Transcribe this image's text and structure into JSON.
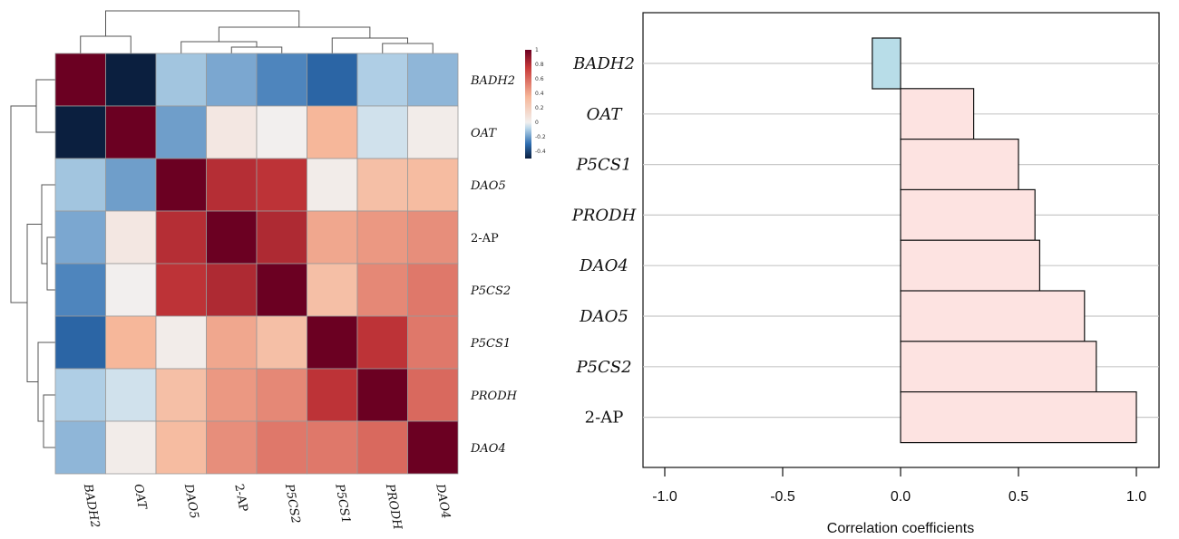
{
  "chart_data": [
    {
      "type": "heatmap",
      "title": "",
      "rows": [
        "BADH2",
        "OAT",
        "DAO5",
        "2-AP",
        "P5CS2",
        "P5CS1",
        "PRODH",
        "DAO4"
      ],
      "cols": [
        "BADH2",
        "OAT",
        "DAO5",
        "2-AP",
        "P5CS2",
        "P5CS1",
        "PRODH",
        "DAO4"
      ],
      "italic_labels": [
        "BADH2",
        "OAT",
        "DAO5",
        "P5CS2",
        "P5CS1",
        "PRODH",
        "DAO4"
      ],
      "values": [
        [
          1.0,
          -0.5,
          -0.12,
          -0.18,
          -0.25,
          -0.32,
          -0.1,
          -0.15
        ],
        [
          -0.5,
          1.0,
          -0.2,
          0.05,
          0.0,
          0.35,
          -0.05,
          0.02
        ],
        [
          -0.12,
          -0.2,
          1.0,
          0.8,
          0.78,
          0.02,
          0.3,
          0.32
        ],
        [
          -0.18,
          0.05,
          0.8,
          1.0,
          0.82,
          0.4,
          0.45,
          0.48
        ],
        [
          -0.25,
          0.0,
          0.78,
          0.82,
          1.0,
          0.3,
          0.5,
          0.55
        ],
        [
          -0.32,
          0.35,
          0.02,
          0.4,
          0.3,
          1.0,
          0.78,
          0.55
        ],
        [
          -0.1,
          -0.05,
          0.3,
          0.45,
          0.5,
          0.78,
          1.0,
          0.6
        ],
        [
          -0.15,
          0.02,
          0.32,
          0.48,
          0.55,
          0.55,
          0.6,
          1.0
        ]
      ],
      "colorbar": {
        "ticks": [
          "1",
          "0.8",
          "0.6",
          "0.4",
          "0.2",
          "0",
          "-0.2",
          "-0.4"
        ],
        "min": -0.5,
        "max": 1.0,
        "colors": {
          "neg": "#0b1f3f",
          "mid_neg": "#2e6db0",
          "light_neg": "#bcd8ea",
          "zero": "#f2efee",
          "light_pos": "#f6b79a",
          "mid_pos": "#c83a3a",
          "pos": "#6b0022"
        }
      }
    },
    {
      "type": "bar",
      "orientation": "horizontal",
      "title": "",
      "categories": [
        "BADH2",
        "OAT",
        "P5CS1",
        "PRODH",
        "DAO4",
        "DAO5",
        "P5CS2",
        "2-AP"
      ],
      "italic_labels": [
        "BADH2",
        "OAT",
        "P5CS1",
        "PRODH",
        "DAO4",
        "DAO5",
        "P5CS2"
      ],
      "values": [
        -0.12,
        0.31,
        0.5,
        0.57,
        0.59,
        0.78,
        0.83,
        1.0
      ],
      "xlim": [
        -1.0,
        1.0
      ],
      "x_ticks": [
        "-1.0",
        "-0.5",
        "0.0",
        "0.5",
        "1.0"
      ],
      "xlabel": "Correlation coefficients",
      "grid": true,
      "colors": {
        "positive": "#fde3e1",
        "negative": "#b8dde8"
      }
    }
  ]
}
